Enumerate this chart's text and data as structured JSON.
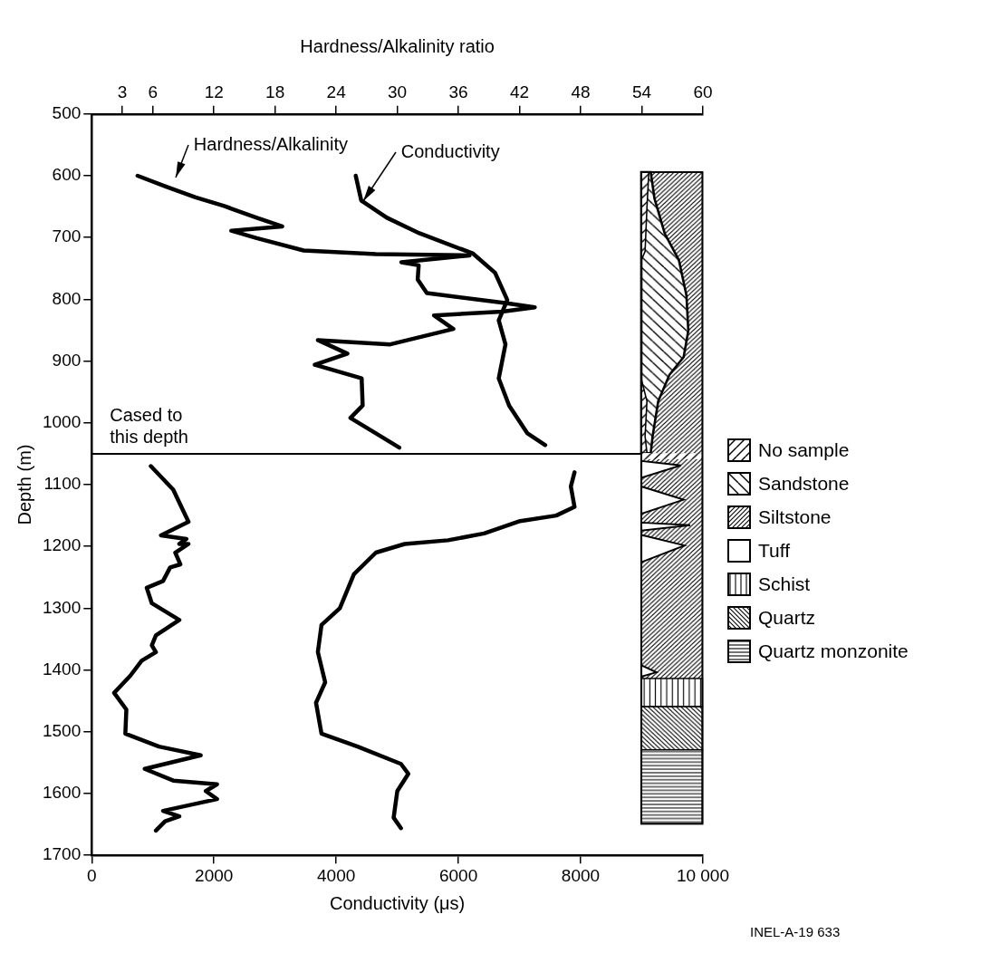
{
  "chart_data": {
    "type": "line",
    "xlabel": "Conductivity (μs)",
    "ylabel": "Depth (m)",
    "x2label": "Hardness/Alkalinity ratio",
    "xlim": [
      0,
      10000
    ],
    "xticks": [
      0,
      2000,
      4000,
      6000,
      8000,
      {
        "value": 10000,
        "label": "10 000"
      }
    ],
    "x2lim": [
      0,
      60
    ],
    "x2ticks": [
      3,
      6,
      12,
      18,
      24,
      30,
      36,
      42,
      48,
      54,
      60
    ],
    "ylim": [
      1700,
      500
    ],
    "yticks": [
      500,
      600,
      700,
      800,
      900,
      1000,
      1100,
      1200,
      1300,
      1400,
      1500,
      1600,
      1700
    ],
    "grid": false,
    "legend": false,
    "marker": "none",
    "line_style": "solid",
    "ref_lines": [
      {
        "axis": "y",
        "value": 1050,
        "label": "Cased to this depth",
        "color": "#000000"
      }
    ],
    "annotations": [
      "No sample",
      "Sandstone",
      "Siltstone",
      "Tuff",
      "Schist",
      "Quartz",
      "Quartz monzonite",
      "INEL-A-19 633"
    ],
    "series": [
      {
        "name": "Hardness/Alkalinity",
        "color": "#000000",
        "axis": "x2",
        "x": [
          4.5,
          7.2,
          10.2,
          13.0,
          16.2,
          18.7,
          13.7,
          16.2,
          20.8,
          27.9,
          37.1,
          30.4,
          32.1,
          32.0,
          32.9,
          40.6,
          43.5,
          40.3,
          33.6,
          35.5,
          29.3,
          22.2,
          25.1,
          21.9,
          26.5,
          26.6,
          25.4,
          27.9,
          30.2,
          null,
          5.8,
          8.0,
          8.8,
          9.5,
          6.8,
          9.3,
          8.6,
          9.5,
          8.2,
          8.7,
          7.7,
          7.0,
          5.4,
          5.9,
          8.6,
          6.3,
          5.9,
          6.3,
          4.9,
          3.8,
          2.2,
          3.4,
          3.3,
          6.6,
          10.7,
          5.2,
          8.0,
          12.3,
          11.2,
          12.3,
          7.0,
          8.6,
          7.2,
          6.3
        ],
        "values": [
          600,
          617,
          635,
          649,
          668,
          682,
          689,
          701,
          721,
          727,
          729,
          740,
          745,
          768,
          790,
          806,
          813,
          820,
          826,
          848,
          873,
          866,
          888,
          906,
          928,
          972,
          992,
          1017,
          1040,
          null,
          1070,
          1108,
          1136,
          1160,
          1182,
          1188,
          1196,
          1196,
          1210,
          1229,
          1234,
          1256,
          1267,
          1292,
          1319,
          1344,
          1360,
          1371,
          1385,
          1409,
          1437,
          1464,
          1503,
          1524,
          1538,
          1560,
          1579,
          1585,
          1596,
          1609,
          1628,
          1637,
          1645,
          1660
        ]
      },
      {
        "name": "Conductivity",
        "color": "#000000",
        "x": [
          4320,
          4410,
          4830,
          5360,
          6240,
          6600,
          6800,
          6660,
          6770,
          6660,
          6830,
          7130,
          7420,
          null,
          7900,
          7840,
          7900,
          7600,
          7010,
          6420,
          5830,
          5120,
          4650,
          4290,
          4060,
          3760,
          3700,
          3820,
          3670,
          3760,
          4350,
          5060,
          5180,
          5000,
          4940,
          5060
        ],
        "values": [
          600,
          640,
          668,
          693,
          726,
          757,
          801,
          834,
          873,
          928,
          972,
          1017,
          1036,
          null,
          1080,
          1103,
          1136,
          1150,
          1159,
          1179,
          1190,
          1196,
          1210,
          1245,
          1300,
          1327,
          1371,
          1420,
          1453,
          1503,
          1524,
          1552,
          1568,
          1596,
          1639,
          1656
        ]
      }
    ]
  }
}
